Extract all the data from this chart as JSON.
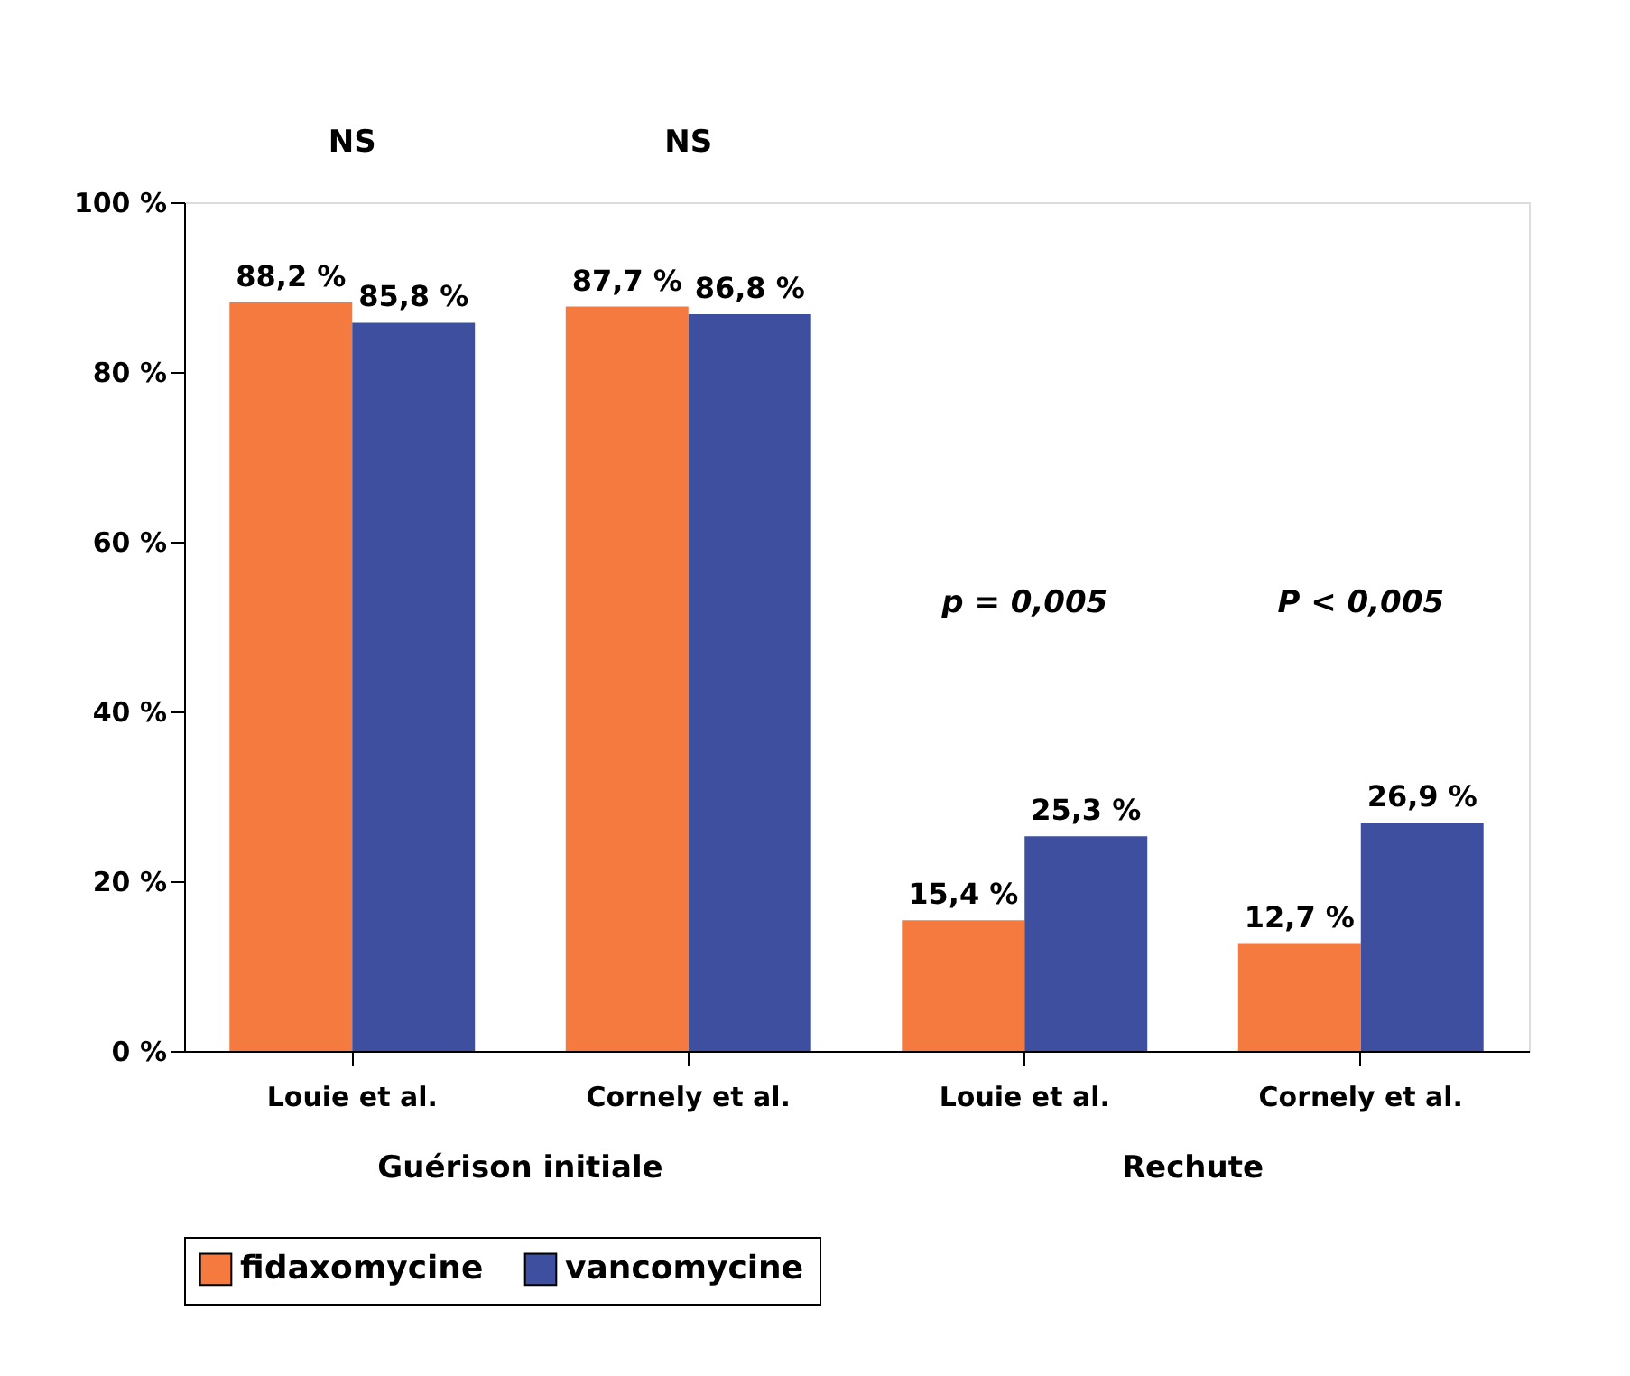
{
  "chart_data": {
    "type": "bar",
    "categories": [
      "Louie et al.",
      "Cornely et al.",
      "Louie et al.",
      "Cornely et al."
    ],
    "series": [
      {
        "name": "fidaxomycine",
        "color": "#f47a40",
        "values": [
          88.2,
          87.7,
          15.4,
          12.7
        ],
        "value_labels": [
          "88,2 %",
          "87,7 %",
          "15,4 %",
          "12,7 %"
        ]
      },
      {
        "name": "vancomycine",
        "color": "#3f4fa0",
        "values": [
          85.8,
          86.8,
          25.3,
          26.9
        ],
        "value_labels": [
          "85,8 %",
          "86,8 %",
          "25,3 %",
          "26,9 %"
        ]
      }
    ],
    "ylim": [
      0,
      100
    ],
    "yticks": [
      {
        "value": 0,
        "label": "0 %"
      },
      {
        "value": 20,
        "label": "20 %"
      },
      {
        "value": 40,
        "label": "40 %"
      },
      {
        "value": 60,
        "label": "60 %"
      },
      {
        "value": 80,
        "label": "80 %"
      },
      {
        "value": 100,
        "label": "100 %"
      }
    ],
    "annotations": [
      "NS",
      "NS",
      "p = 0,005",
      "P < 0,005",
      "Guérison initiale",
      "Rechute"
    ],
    "grid": false,
    "legend": "bottom"
  }
}
